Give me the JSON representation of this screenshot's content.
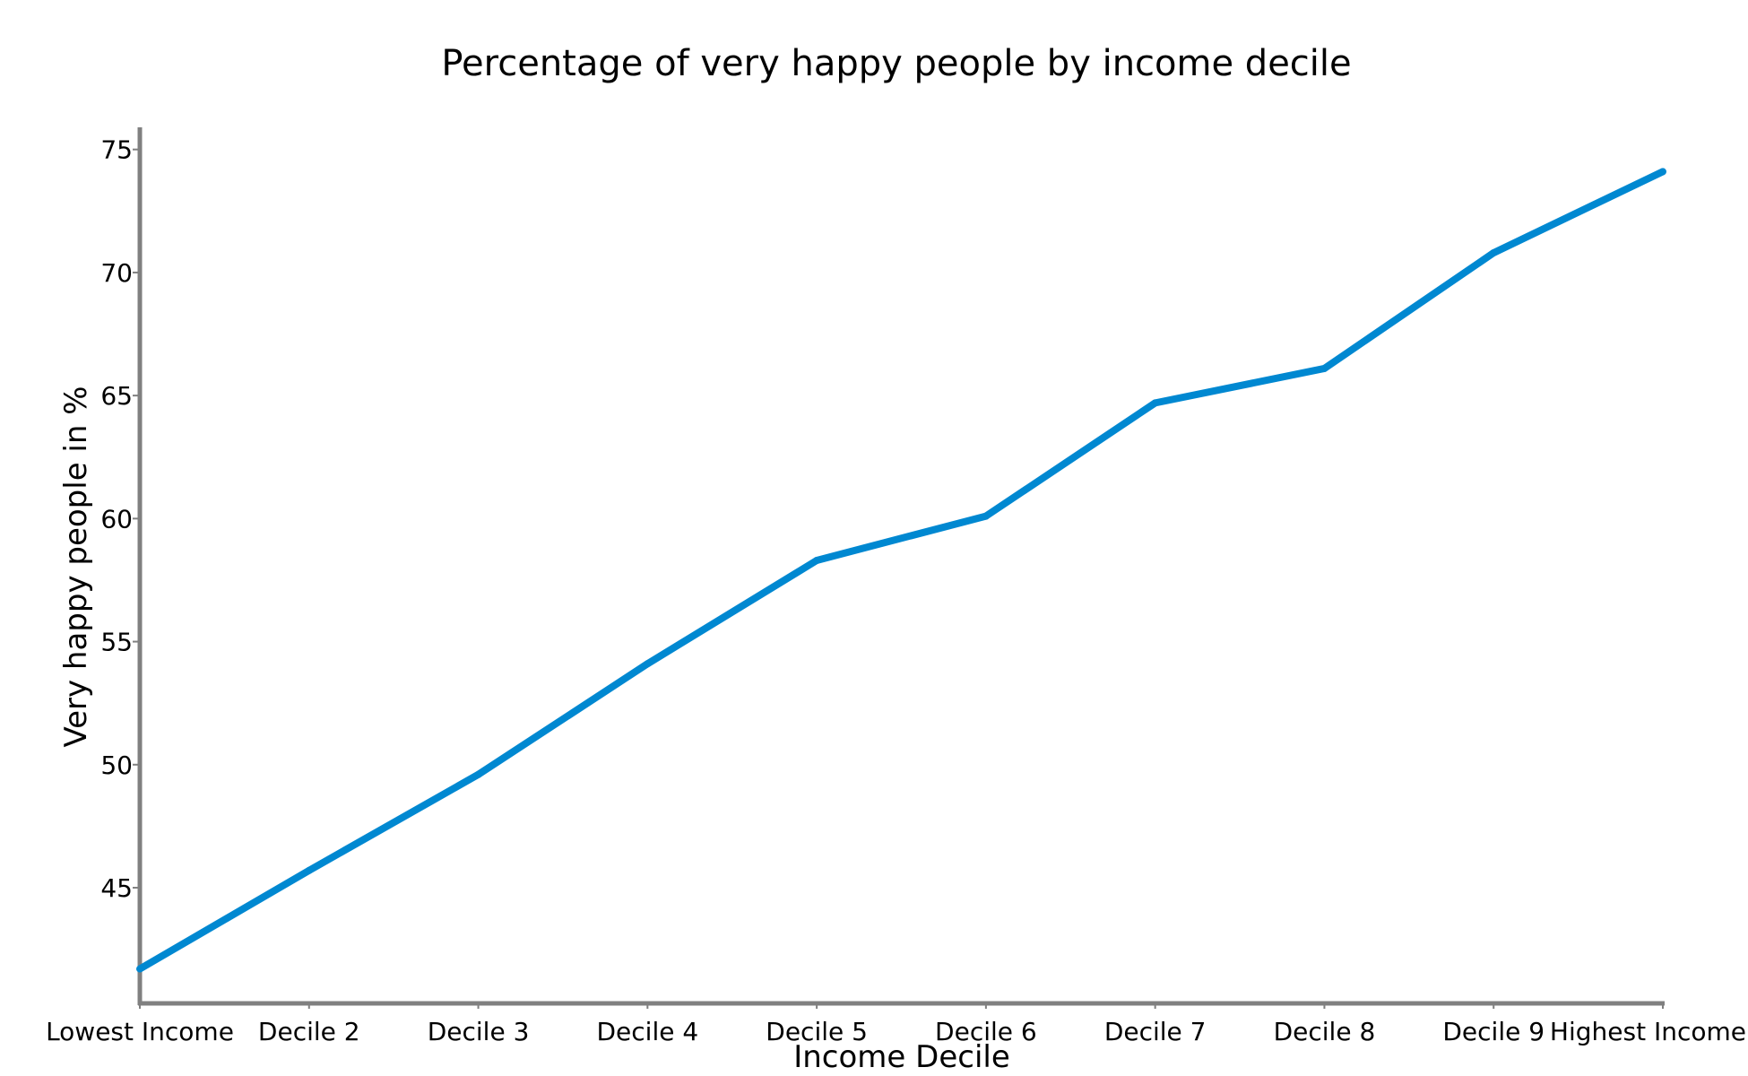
{
  "chart_data": {
    "type": "line",
    "title": "Percentage of very happy people by income decile",
    "xlabel": "Income Decile",
    "ylabel": "Very happy people in %",
    "categories": [
      "Lowest Income",
      "Decile 2",
      "Decile 3",
      "Decile 4",
      "Decile 5",
      "Decile 6",
      "Decile 7",
      "Decile 8",
      "Decile 9",
      "Highest Income"
    ],
    "values": [
      41.7,
      45.7,
      49.6,
      54.1,
      58.3,
      60.1,
      64.7,
      66.1,
      70.8,
      74.1
    ],
    "yticks": [
      45,
      50,
      55,
      60,
      65,
      70,
      75
    ],
    "ylim": [
      40.3,
      75.9
    ],
    "grid": false,
    "line_color": "#0088d1",
    "axis_color": "#808080"
  }
}
